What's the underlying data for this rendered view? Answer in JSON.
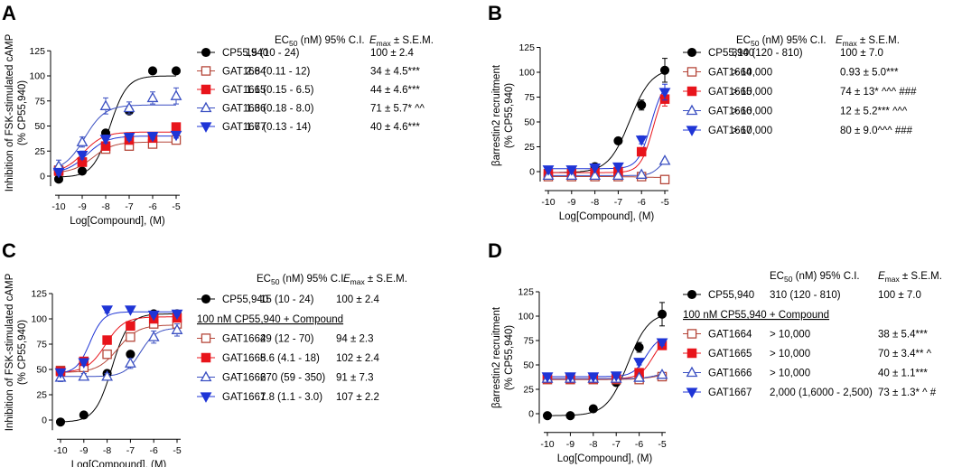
{
  "colors": {
    "black": "#000000",
    "brown": "#b5473a",
    "red": "#e8141b",
    "blue": "#1f35d6",
    "blue_open": "#3a4fc2"
  },
  "styles": {
    "CP55,940": {
      "color": "#000000",
      "marker": "circle",
      "fill": true
    },
    "GAT1664": {
      "color": "#b5473a",
      "marker": "square",
      "fill": false
    },
    "GAT1665": {
      "color": "#e8141b",
      "marker": "square",
      "fill": true
    },
    "GAT1666": {
      "color": "#3a4fc2",
      "marker": "triangle-up",
      "fill": false
    },
    "GAT1667": {
      "color": "#1f35d6",
      "marker": "triangle-down",
      "fill": true
    }
  },
  "chart_data": [
    {
      "panel": "A",
      "type": "scatter",
      "xlabel": "Log[Compound], (M)",
      "ylabel_line1": "Inhibition of FSK-stimulated cAMP",
      "ylabel_line2": "(% CP55,940)",
      "x": [
        -10,
        -9,
        -8,
        -7,
        -6,
        -5
      ],
      "xticks": [
        "-10",
        "-9",
        "-8",
        "-7",
        "-6",
        "-5"
      ],
      "ylim": [
        -10,
        125
      ],
      "yticks": [
        "0",
        "25",
        "50",
        "75",
        "100",
        "125"
      ],
      "header": {
        "col1": "EC",
        "col1_sub": "50",
        "col1_rest": " (nM) 95% C.I.",
        "col2": "E",
        "col2_sub": "max",
        "col2_rest": " ± S.E.M."
      },
      "subheader": "",
      "series": [
        {
          "name": "CP55,940",
          "ec50": "15 (10 - 24)",
          "emax": "100 ± 2.4",
          "values": [
            -3,
            5,
            43,
            65,
            105,
            105
          ],
          "err": [
            2,
            2,
            3,
            2,
            2,
            2
          ],
          "fit": {
            "bottom": -1,
            "top": 100,
            "logec50": -7.82,
            "hill": 1.2
          }
        },
        {
          "name": "GAT1664",
          "ec50": "2.8 (0.11 - 12)",
          "emax": "34 ± 4.5***",
          "values": [
            6,
            14,
            27,
            30,
            32,
            36
          ],
          "err": [
            4,
            4,
            4,
            3,
            3,
            3
          ],
          "fit": {
            "bottom": 3,
            "top": 34,
            "logec50": -8.55,
            "hill": 1.0
          }
        },
        {
          "name": "GAT1665",
          "ec50": "1.1 (0.15 - 6.5)",
          "emax": "44 ± 4.6***",
          "values": [
            5,
            14,
            30,
            36,
            38,
            49
          ],
          "err": [
            3,
            3,
            3,
            3,
            3,
            3
          ],
          "fit": {
            "bottom": 3,
            "top": 44,
            "logec50": -8.95,
            "hill": 1.0
          }
        },
        {
          "name": "GAT1666",
          "ec50": "1.3 (0.18 - 8.0)",
          "emax": "71 ± 5.7* ^^",
          "values": [
            10,
            34,
            70,
            68,
            78,
            80
          ],
          "err": [
            6,
            5,
            8,
            6,
            6,
            8
          ],
          "fit": {
            "bottom": 5,
            "top": 71,
            "logec50": -8.9,
            "hill": 1.0
          }
        },
        {
          "name": "GAT1667",
          "ec50": "1.7 (0.13 - 14)",
          "emax": "40 ± 4.6***",
          "values": [
            4,
            21,
            37,
            39,
            40,
            41
          ],
          "err": [
            3,
            4,
            4,
            3,
            3,
            3
          ],
          "fit": {
            "bottom": 3,
            "top": 40,
            "logec50": -8.8,
            "hill": 1.0
          }
        }
      ]
    },
    {
      "panel": "B",
      "type": "scatter",
      "xlabel": "Log[Compound], (M)",
      "ylabel_line1": "βarrestin2 recruitment",
      "ylabel_line2": "(% CP55,940)",
      "x": [
        -10,
        -9,
        -8,
        -7,
        -6,
        -5
      ],
      "xticks": [
        "-10",
        "-9",
        "-8",
        "-7",
        "-6",
        "-5"
      ],
      "ylim": [
        -10,
        125
      ],
      "yticks": [
        "0",
        "25",
        "50",
        "75",
        "100",
        "125"
      ],
      "header": {
        "col1": "EC",
        "col1_sub": "50",
        "col1_rest": " (nM) 95% C.I.",
        "col2": "E",
        "col2_sub": "max",
        "col2_rest": " ± S.E.M."
      },
      "subheader": "",
      "series": [
        {
          "name": "CP55,940",
          "ec50": "310 (120 - 810)",
          "emax": "100 ± 7.0",
          "values": [
            -1,
            0,
            5,
            31,
            67,
            102
          ],
          "err": [
            2,
            2,
            2,
            3,
            5,
            12
          ],
          "fit": {
            "bottom": -1,
            "top": 104,
            "logec50": -6.5,
            "hill": 0.95
          }
        },
        {
          "name": "GAT1664",
          "ec50": "> 10,000",
          "emax": "0.93 ± 5.0***",
          "values": [
            -5,
            -5,
            -5,
            -5,
            -5,
            -8
          ],
          "err": [
            1,
            1,
            1,
            1,
            1,
            1
          ],
          "fit": {
            "bottom": -5,
            "top": -6,
            "logec50": -6,
            "hill": 1
          }
        },
        {
          "name": "GAT1665",
          "ec50": "> 10,000",
          "emax": "74 ± 13* ^^^ ###",
          "values": [
            -2,
            -2,
            -1,
            0,
            20,
            73
          ],
          "err": [
            1,
            1,
            1,
            1,
            3,
            7
          ],
          "fit": {
            "bottom": -1,
            "top": 90,
            "logec50": -5.5,
            "hill": 1.6
          }
        },
        {
          "name": "GAT1666",
          "ec50": "> 10,000",
          "emax": "12 ± 5.2*** ^^^",
          "values": [
            -4,
            -4,
            -4,
            -4,
            -3,
            11
          ],
          "err": [
            1,
            1,
            1,
            1,
            1,
            1
          ],
          "fit": {
            "bottom": -4,
            "top": 15,
            "logec50": -5.2,
            "hill": 2.0
          }
        },
        {
          "name": "GAT1667",
          "ec50": "> 10,000",
          "emax": "80 ± 9.0^^^ ###",
          "values": [
            2,
            2,
            4,
            5,
            32,
            80
          ],
          "err": [
            1,
            1,
            1,
            2,
            4,
            8
          ],
          "fit": {
            "bottom": 3,
            "top": 92,
            "logec50": -5.6,
            "hill": 1.6
          }
        }
      ]
    },
    {
      "panel": "C",
      "type": "scatter",
      "xlabel": "Log[Compound], (M)",
      "ylabel_line1": "Inhibition of FSK-stimulated cAMP",
      "ylabel_line2": "(% CP55,940)",
      "x": [
        -10,
        -9,
        -8,
        -7,
        -6,
        -5
      ],
      "xticks": [
        "-10",
        "-9",
        "-8",
        "-7",
        "-6",
        "-5"
      ],
      "ylim": [
        -10,
        125
      ],
      "yticks": [
        "0",
        "25",
        "50",
        "75",
        "100",
        "125"
      ],
      "header": {
        "col1": "EC",
        "col1_sub": "50",
        "col1_rest": " (nM) 95% C.I.",
        "col2": "E",
        "col2_sub": "max",
        "col2_rest": " ± S.E.M."
      },
      "subheader": "100 nM CP55,940 + Compound",
      "series": [
        {
          "name": "CP55,940",
          "ec50": "15 (10 - 24)",
          "emax": "100 ± 2.4",
          "values": [
            -2,
            5,
            46,
            65,
            105,
            105
          ],
          "err": [
            2,
            3,
            3,
            3,
            2,
            2
          ],
          "fit": {
            "bottom": -2,
            "top": 105,
            "logec50": -7.8,
            "hill": 1.2
          }
        },
        {
          "name": "GAT1664",
          "ec50": "29 (12 - 70)",
          "emax": "94 ± 2.3",
          "values": [
            49,
            52,
            65,
            82,
            95,
            95
          ],
          "err": [
            3,
            3,
            3,
            3,
            3,
            3
          ],
          "fit": {
            "bottom": 47,
            "top": 94,
            "logec50": -7.54,
            "hill": 1.0
          }
        },
        {
          "name": "GAT1665",
          "ec50": "8.6 (4.1 - 18)",
          "emax": "102 ± 2.4",
          "values": [
            48,
            58,
            79,
            93,
            100,
            101
          ],
          "err": [
            3,
            3,
            3,
            3,
            3,
            3
          ],
          "fit": {
            "bottom": 47,
            "top": 102,
            "logec50": -8.07,
            "hill": 1.1
          }
        },
        {
          "name": "GAT1666",
          "ec50": "270 (59 - 350)",
          "emax": "91 ± 7.3",
          "values": [
            42,
            43,
            43,
            56,
            82,
            89
          ],
          "err": [
            4,
            3,
            3,
            5,
            6,
            6
          ],
          "fit": {
            "bottom": 43,
            "top": 91,
            "logec50": -6.57,
            "hill": 1.3
          }
        },
        {
          "name": "GAT1667",
          "ec50": "1.8 (1.1 - 3.0)",
          "emax": "107 ± 2.2",
          "values": [
            47,
            57,
            109,
            109,
            104,
            105
          ],
          "err": [
            3,
            3,
            3,
            2,
            2,
            2
          ],
          "fit": {
            "bottom": 46,
            "top": 107,
            "logec50": -8.74,
            "hill": 1.5
          }
        }
      ]
    },
    {
      "panel": "D",
      "type": "scatter",
      "xlabel": "Log[Compound], (M)",
      "ylabel_line1": "βarrestin2 recruitment",
      "ylabel_line2": "(% CP55,940)",
      "x": [
        -10,
        -9,
        -8,
        -7,
        -6,
        -5
      ],
      "xticks": [
        "-10",
        "-9",
        "-8",
        "-7",
        "-6",
        "-5"
      ],
      "ylim": [
        -10,
        125
      ],
      "yticks": [
        "0",
        "25",
        "50",
        "75",
        "100",
        "125"
      ],
      "header": {
        "col1": "EC",
        "col1_sub": "50",
        "col1_rest": " (nM) 95% C.I.",
        "col2": "E",
        "col2_sub": "max",
        "col2_rest": " ± S.E.M."
      },
      "subheader": "100 nM CP55,940 + Compound",
      "series": [
        {
          "name": "CP55,940",
          "ec50": "310 (120 - 810)",
          "emax": "100 ± 7.0",
          "values": [
            -2,
            -2,
            5,
            32,
            68,
            102
          ],
          "err": [
            2,
            2,
            2,
            3,
            5,
            12
          ],
          "fit": {
            "bottom": -2,
            "top": 104,
            "logec50": -6.5,
            "hill": 0.95
          }
        },
        {
          "name": "GAT1664",
          "ec50": "> 10,000",
          "emax": "38 ± 5.4***",
          "values": [
            35,
            35,
            35,
            35,
            35,
            38
          ],
          "err": [
            2,
            2,
            2,
            2,
            2,
            2
          ],
          "fit": {
            "bottom": 35,
            "top": 42,
            "logec50": -5.2,
            "hill": 1
          }
        },
        {
          "name": "GAT1665",
          "ec50": "> 10,000",
          "emax": "70 ± 3.4** ^",
          "values": [
            36,
            36,
            36,
            36,
            42,
            70
          ],
          "err": [
            2,
            2,
            2,
            2,
            3,
            4
          ],
          "fit": {
            "bottom": 36,
            "top": 80,
            "logec50": -5.4,
            "hill": 1.5
          }
        },
        {
          "name": "GAT1666",
          "ec50": "> 10,000",
          "emax": "40 ± 1.1***",
          "values": [
            36,
            36,
            36,
            36,
            37,
            40
          ],
          "err": [
            1,
            1,
            1,
            1,
            1,
            2
          ],
          "fit": {
            "bottom": 36,
            "top": 42,
            "logec50": -5.3,
            "hill": 1.5
          }
        },
        {
          "name": "GAT1667",
          "ec50": "2,000 (1,6000 - 2,500)",
          "emax": "73 ± 1.3* ^ #",
          "values": [
            38,
            38,
            38,
            39,
            53,
            73
          ],
          "err": [
            2,
            2,
            2,
            2,
            3,
            3
          ],
          "fit": {
            "bottom": 38,
            "top": 80,
            "logec50": -5.7,
            "hill": 1.5
          }
        }
      ]
    }
  ]
}
